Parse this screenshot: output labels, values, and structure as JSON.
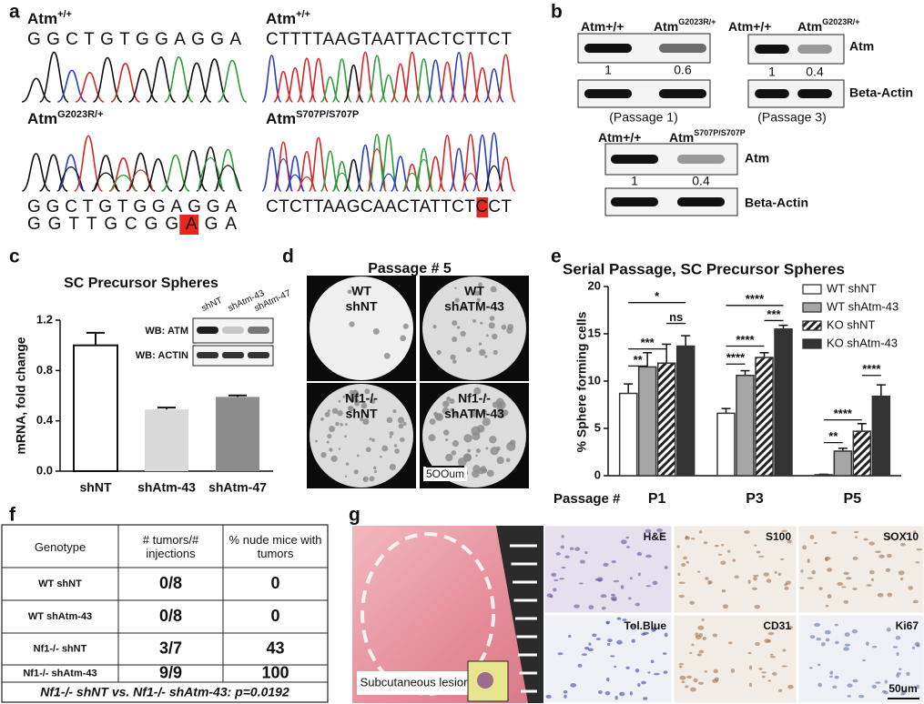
{
  "panel_labels": [
    "a",
    "b",
    "c",
    "d",
    "e",
    "f",
    "g"
  ],
  "sequencing": [
    {
      "label": {
        "name": "Atm",
        "sup": "+/+"
      },
      "sequences": [
        "GGCTGTGGAGGA"
      ]
    },
    {
      "label": {
        "name": "Atm",
        "sup": "+/+"
      },
      "sequences": [
        "CTTTTAAGTAATTACTCTTCT"
      ]
    },
    {
      "label": {
        "name": "Atm",
        "sup": "G2023R/+"
      },
      "sequences": [
        "GGCTGTGGAGGA",
        "GGTTGCGGAGA"
      ]
    },
    {
      "label": {
        "name": "Atm",
        "sup": "S707P/S707P"
      },
      "sequences": [
        "CTCTTAAGCAACTATTCTCCT"
      ]
    }
  ],
  "western_blots": [
    {
      "lanes": [
        {
          "name": "Atm+/+",
          "sup": ""
        },
        {
          "name": "Atm",
          "sup": "G2023R/+"
        }
      ],
      "quant": [
        1,
        0.6
      ],
      "caption": "(Passage 1)"
    },
    {
      "lanes": [
        {
          "name": "Atm+/+",
          "sup": ""
        },
        {
          "name": "Atm",
          "sup": "G2023R/+"
        }
      ],
      "quant": [
        1,
        0.4
      ],
      "caption": "(Passage 3)",
      "bands": [
        "Atm",
        "Beta-Actin"
      ]
    },
    {
      "lanes": [
        {
          "name": "Atm+/+",
          "sup": ""
        },
        {
          "name": "Atm",
          "sup": "S707P/S707P"
        }
      ],
      "quant": [
        1,
        0.4
      ],
      "bands": [
        "Atm",
        "Beta-Actin"
      ]
    }
  ],
  "chart_data": [
    {
      "type": "bar",
      "title": "SC Precursor Spheres",
      "y_label": "mRNA, fold change",
      "categories": [
        "shNT",
        "shAtm-43",
        "shAtm-47"
      ],
      "values": [
        1.0,
        0.49,
        0.59
      ],
      "errors": [
        0.1,
        0.015,
        0.012
      ],
      "colors": [
        "#ffffff",
        "#d9d9d9",
        "#8c8c8c"
      ],
      "ylim": [
        0,
        1.2
      ],
      "yticks": [
        {
          "value": 0,
          "label": "0.0"
        },
        0.4,
        0.8,
        1.2
      ],
      "inset_blot": {
        "lanes": [
          "shNT",
          "shAtm-43",
          "shAtm-47"
        ],
        "rows": [
          "WB: ATM",
          "WB: ACTIN"
        ]
      }
    },
    {
      "type": "grouped_bar",
      "title": "Serial Passage, SC Precursor Spheres",
      "y_label": "% Sphere forming cells",
      "x_label": "Passage #",
      "categories": [
        "P1",
        "P3",
        "P5"
      ],
      "series": [
        {
          "name": "WT shNT",
          "color": "#ffffff",
          "values": [
            8.7,
            6.6,
            0.1
          ],
          "errors": [
            1.0,
            0.5,
            0.05
          ]
        },
        {
          "name": "WT shAtm-43",
          "color": "#a6a6a6",
          "values": [
            11.5,
            10.6,
            2.6
          ],
          "errors": [
            1.5,
            0.5,
            0.3
          ]
        },
        {
          "name": "KO shNT",
          "color": "#222222",
          "pattern": "hatch",
          "values": [
            11.9,
            12.5,
            4.7
          ],
          "errors": [
            2.0,
            0.5,
            0.8
          ]
        },
        {
          "name": "KO shAtm-43",
          "color": "#333333",
          "values": [
            13.7,
            15.5,
            8.4
          ],
          "errors": [
            1.1,
            0.4,
            1.2
          ]
        }
      ],
      "ylim": [
        0,
        20
      ],
      "yticks": [
        0,
        5,
        10,
        15,
        20
      ],
      "legend": "upper right",
      "annotations": [
        "**",
        "***",
        "*",
        "ns",
        "****",
        "****",
        "****",
        "***",
        "**",
        "****",
        "****"
      ]
    }
  ],
  "sphere_images": {
    "title": "Passage # 5",
    "wells": [
      [
        "WT",
        "shNT"
      ],
      [
        "WT",
        "shATM-43"
      ],
      [
        "Nf1-/-",
        "shNT"
      ],
      [
        "Nf1-/-",
        "shATM-43"
      ]
    ],
    "scale_bar": "5OOum"
  },
  "tumor_table": {
    "header": [
      "Genotype",
      "# tumors/# injections",
      "% nude mice with tumors"
    ],
    "rows": [
      [
        "WT shNT",
        "0/8",
        "0"
      ],
      [
        "WT shAtm-43",
        "0/8",
        "0"
      ],
      [
        "Nf1-/- shNT",
        "3/7",
        "43"
      ],
      [
        "Nf1-/- shAtm-43",
        "9/9",
        "100"
      ]
    ],
    "footer": "Nf1-/- shNT vs. Nf1-/- shAtm-43: p=0.0192"
  },
  "histology": {
    "lesion_label": "Subcutaneous lesion",
    "stains": [
      "H&E",
      "S100",
      "SOX10",
      "Tol.Blue",
      "CD31",
      "Ki67"
    ],
    "scale_bar": "50um"
  }
}
